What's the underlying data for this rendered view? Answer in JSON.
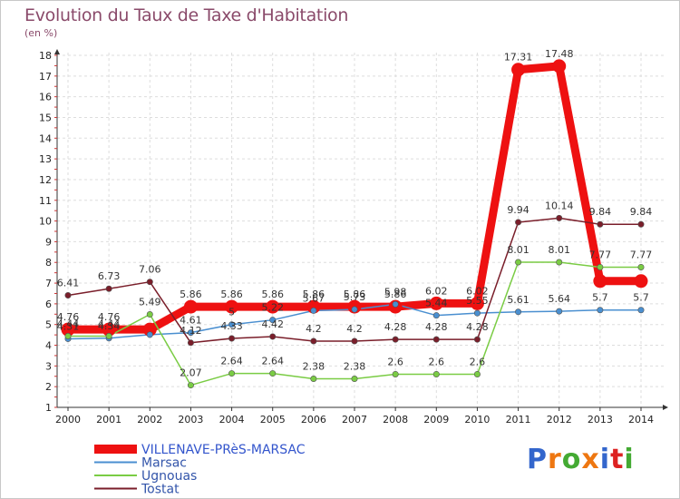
{
  "title": "Evolution du Taux de Taxe d'Habitation",
  "subtitle": "(en %)",
  "logo": "Proxiti",
  "chart_data": {
    "type": "line",
    "x": [
      "2000",
      "2001",
      "2002",
      "2003",
      "2004",
      "2005",
      "2006",
      "2007",
      "2008",
      "2009",
      "2010",
      "2011",
      "2012",
      "2013",
      "2014"
    ],
    "ylim": [
      1,
      18
    ],
    "yticks": [
      1,
      2,
      3,
      4,
      5,
      6,
      7,
      8,
      9,
      10,
      11,
      12,
      13,
      14,
      15,
      16,
      17,
      18
    ],
    "grid": true,
    "legend_position": "bottom-left",
    "series": [
      {
        "name": "VILLENAVE-PRèS-MARSAC",
        "color": "#ee1111",
        "width": 9,
        "values": [
          4.76,
          4.76,
          4.76,
          5.86,
          5.86,
          5.86,
          5.86,
          5.86,
          5.86,
          6.02,
          6.02,
          17.31,
          17.48,
          7.1,
          7.1
        ],
        "labels": [
          "4.76",
          "4.76",
          "",
          "5.86",
          "5.86",
          "5.86",
          "5.86",
          "5.86",
          "5.86",
          "6.02",
          "6.02",
          "17.31",
          "17.48",
          "",
          ""
        ]
      },
      {
        "name": "Marsac",
        "color": "#4a8fd0",
        "width": 1.5,
        "values": [
          4.31,
          4.34,
          4.51,
          4.61,
          5.0,
          5.22,
          5.67,
          5.73,
          5.98,
          5.44,
          5.55,
          5.61,
          5.64,
          5.7,
          5.7
        ],
        "labels": [
          "4.31",
          "4.34",
          "",
          "4.61",
          "5",
          "5.22",
          "5.67",
          "5.73",
          "5.98",
          "5.44",
          "5.55",
          "5.61",
          "5.64",
          "5.7",
          "5.7"
        ]
      },
      {
        "name": "Ugnouas",
        "color": "#7acc44",
        "width": 1.5,
        "values": [
          4.44,
          4.44,
          5.49,
          2.07,
          2.64,
          2.64,
          2.38,
          2.38,
          2.6,
          2.6,
          2.6,
          8.01,
          8.01,
          7.77,
          7.77
        ],
        "labels": [
          "4.44",
          "4.44",
          "5.49",
          "2.07",
          "2.64",
          "2.64",
          "2.38",
          "2.38",
          "2.6",
          "2.6",
          "2.6",
          "8.01",
          "8.01",
          "7.77",
          "7.77"
        ]
      },
      {
        "name": "Tostat",
        "color": "#7a1e2a",
        "width": 1.5,
        "values": [
          6.41,
          6.73,
          7.06,
          4.12,
          4.33,
          4.42,
          4.2,
          4.2,
          4.28,
          4.28,
          4.28,
          9.94,
          10.14,
          9.84,
          9.84
        ],
        "labels": [
          "6.41",
          "6.73",
          "7.06",
          "4.12",
          "4.33",
          "4.42",
          "4.2",
          "4.2",
          "4.28",
          "4.28",
          "4.28",
          "9.94",
          "10.14",
          "9.84",
          "9.84"
        ]
      }
    ]
  }
}
